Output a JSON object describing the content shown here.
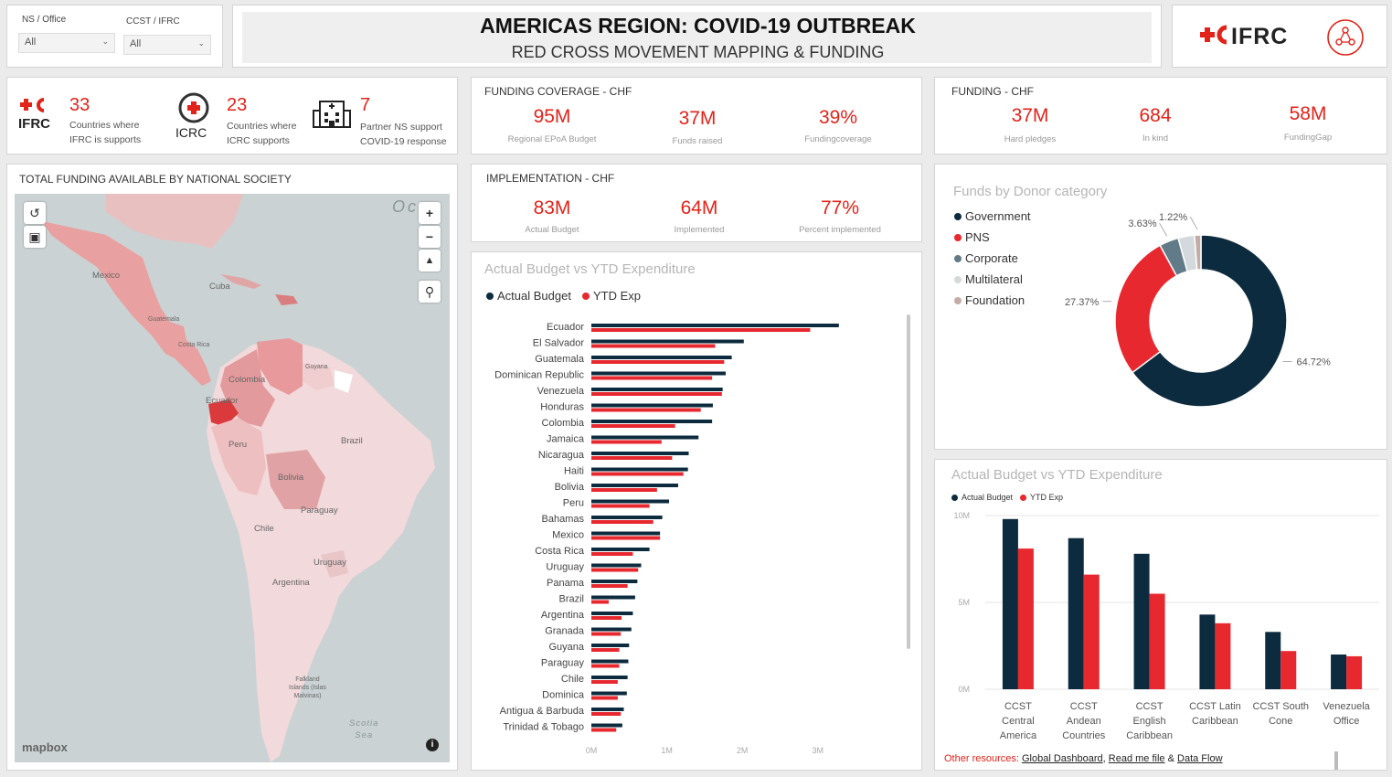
{
  "slicers": [
    {
      "label": "NS / Office",
      "value": "All"
    },
    {
      "label": "CCST / IFRC",
      "value": "All"
    }
  ],
  "header": {
    "title": "AMERICAS REGION: COVID-19 OUTBREAK",
    "subtitle": "RED CROSS MOVEMENT MAPPING & FUNDING",
    "logo_text": "IFRC"
  },
  "counts": [
    {
      "org": "IFRC",
      "value": "33",
      "line1": "Countries where",
      "line2": "IFRC is supports"
    },
    {
      "org": "ICRC",
      "value": "23",
      "line1": "Countries where",
      "line2": "ICRC supports"
    },
    {
      "org": "",
      "value": "7",
      "line1": "Partner NS support",
      "line2": "COVID-19 response"
    }
  ],
  "funding_coverage": {
    "title": "FUNDING COVERAGE - CHF",
    "items": [
      {
        "value": "95M",
        "label": "Regional EPoA Budget"
      },
      {
        "value": "37M",
        "label": "Funds raised"
      },
      {
        "value": "39%",
        "label": "Fundingcoverage"
      }
    ]
  },
  "funding": {
    "title": "FUNDING - CHF",
    "items": [
      {
        "value": "37M",
        "label": "Hard pledges"
      },
      {
        "value": "684",
        "label": "In kind"
      },
      {
        "value": "58M",
        "label": "FundingGap"
      }
    ]
  },
  "implementation": {
    "title": "IMPLEMENTATION - CHF",
    "items": [
      {
        "value": "83M",
        "label": "Actual  Budget"
      },
      {
        "value": "64M",
        "label": "Implemented"
      },
      {
        "value": "77%",
        "label": "Percent implemented"
      }
    ]
  },
  "map": {
    "title": "TOTAL FUNDING AVAILABLE BY NATIONAL SOCIETY",
    "attribution": "mapbox",
    "ocean_label": "Oc",
    "sea_label": "Scotia\nSea",
    "labels": [
      "Mexico",
      "Cuba",
      "Guatemala",
      "Costa Rica",
      "Colombia",
      "Guyana",
      "Ecuador",
      "Peru",
      "Brazil",
      "Bolivia",
      "Paraguay",
      "Chile",
      "Uruguay",
      "Argentina",
      "Falkland\nIslands (Islas\nMalvinas)"
    ]
  },
  "colors": {
    "accent": "#e2231a",
    "dark": "#002c3e",
    "government": "#0d2b3e",
    "pns": "#e8282f",
    "corporate": "#627b89",
    "multilateral": "#d4d9dd",
    "foundation": "#c4aca6"
  },
  "chart_data": [
    {
      "type": "bar",
      "orientation": "horizontal",
      "title": "Actual Budget vs YTD Expenditure",
      "series": [
        {
          "name": "Actual  Budget",
          "color": "#0d2b3e"
        },
        {
          "name": "YTD Exp",
          "color": "#e8282f"
        }
      ],
      "categories": [
        "Ecuador",
        "El Salvador",
        "Guatemala",
        "Dominican Republic",
        "Venezuela",
        "Honduras",
        "Colombia",
        "Jamaica",
        "Nicaragua",
        "Haiti",
        "Bolivia",
        "Peru",
        "Bahamas",
        "Mexico",
        "Costa Rica",
        "Uruguay",
        "Panama",
        "Brazil",
        "Argentina",
        "Granada",
        "Guyana",
        "Paraguay",
        "Chile",
        "Dominica",
        "Antigua & Barbuda",
        "Trinidad & Tobago"
      ],
      "budget": [
        3.28,
        2.02,
        1.86,
        1.78,
        1.74,
        1.61,
        1.6,
        1.42,
        1.29,
        1.28,
        1.15,
        1.03,
        0.94,
        0.91,
        0.77,
        0.66,
        0.61,
        0.58,
        0.55,
        0.53,
        0.5,
        0.49,
        0.48,
        0.47,
        0.43,
        0.41
      ],
      "ytd": [
        2.9,
        1.64,
        1.76,
        1.6,
        1.73,
        1.45,
        1.11,
        0.93,
        1.07,
        1.22,
        0.87,
        0.77,
        0.82,
        0.91,
        0.55,
        0.62,
        0.48,
        0.23,
        0.4,
        0.39,
        0.37,
        0.37,
        0.35,
        0.35,
        0.39,
        0.33
      ],
      "xticks": [
        "0M",
        "1M",
        "2M",
        "3M"
      ],
      "xlim": [
        0,
        3.5
      ]
    },
    {
      "type": "pie",
      "title": "Funds by Donor category",
      "slices": [
        {
          "name": "Government",
          "value": 64.72,
          "color": "#0d2b3e",
          "label": "64.72%"
        },
        {
          "name": "PNS",
          "value": 27.37,
          "color": "#e8282f",
          "label": "27.37%"
        },
        {
          "name": "Corporate",
          "value": 3.63,
          "color": "#627b89",
          "label": "3.63%"
        },
        {
          "name": "Multilateral",
          "value": 3.06,
          "color": "#d4d9dd",
          "label": ""
        },
        {
          "name": "Foundation",
          "value": 1.22,
          "color": "#c4aca6",
          "label": "1.22%"
        }
      ]
    },
    {
      "type": "bar",
      "title": "Actual Budget vs YTD Expenditure",
      "series": [
        {
          "name": "Actual  Budget",
          "color": "#0d2b3e"
        },
        {
          "name": "YTD Exp",
          "color": "#e8282f"
        }
      ],
      "categories": [
        "CCST\nCentral\nAmerica",
        "CCST\nAndean\nCountries",
        "CCST\nEnglish\nCaribbean",
        "CCST Latin\nCaribbean",
        "CCST South\nCone",
        "Venezuela\nOffice"
      ],
      "budget": [
        9.8,
        8.7,
        7.8,
        4.3,
        3.3,
        2.0
      ],
      "ytd": [
        8.1,
        6.6,
        5.5,
        3.8,
        2.2,
        1.9
      ],
      "yticks": [
        "0M",
        "5M",
        "10M"
      ],
      "ylim": [
        0,
        10
      ]
    }
  ],
  "footer": {
    "prefix": "Other resources:",
    "links": [
      "Global Dashboard",
      "Read me file",
      "Data Flow"
    ],
    "sep1": ",",
    "sep2": "&"
  }
}
